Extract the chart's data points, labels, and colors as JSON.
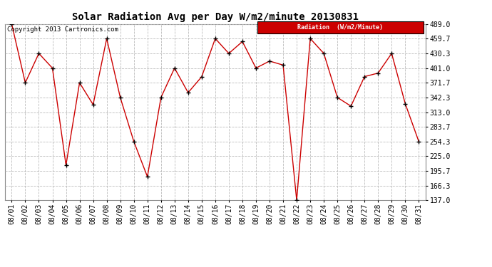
{
  "title": "Solar Radiation Avg per Day W/m2/minute 20130831",
  "copyright_text": "Copyright 2013 Cartronics.com",
  "legend_label": "Radiation  (W/m2/Minute)",
  "dates": [
    "08/01",
    "08/02",
    "08/03",
    "08/04",
    "08/05",
    "08/06",
    "08/07",
    "08/08",
    "08/09",
    "08/10",
    "08/11",
    "08/12",
    "08/13",
    "08/14",
    "08/15",
    "08/16",
    "08/17",
    "08/18",
    "08/19",
    "08/20",
    "08/21",
    "08/22",
    "08/23",
    "08/24",
    "08/25",
    "08/26",
    "08/27",
    "08/28",
    "08/29",
    "08/30",
    "08/31"
  ],
  "values": [
    489.0,
    371.7,
    430.3,
    401.0,
    207.0,
    371.7,
    328.0,
    460.0,
    342.3,
    254.3,
    184.0,
    342.3,
    401.0,
    352.0,
    383.7,
    460.0,
    430.3,
    454.0,
    401.0,
    415.0,
    407.0,
    137.0,
    460.0,
    430.3,
    342.3,
    325.0,
    384.0,
    391.0,
    430.3,
    330.0,
    254.3
  ],
  "ylim_min": 137.0,
  "ylim_max": 489.0,
  "yticks": [
    137.0,
    166.3,
    195.7,
    225.0,
    254.3,
    283.7,
    313.0,
    342.3,
    371.7,
    401.0,
    430.3,
    459.7,
    489.0
  ],
  "line_color": "#cc0000",
  "marker_color": "#000000",
  "bg_color": "#ffffff",
  "plot_bg_color": "#ffffff",
  "grid_color": "#bbbbbb",
  "legend_bg": "#cc0000",
  "legend_text_color": "#ffffff",
  "title_fontsize": 10,
  "tick_fontsize": 7,
  "copyright_fontsize": 6.5
}
